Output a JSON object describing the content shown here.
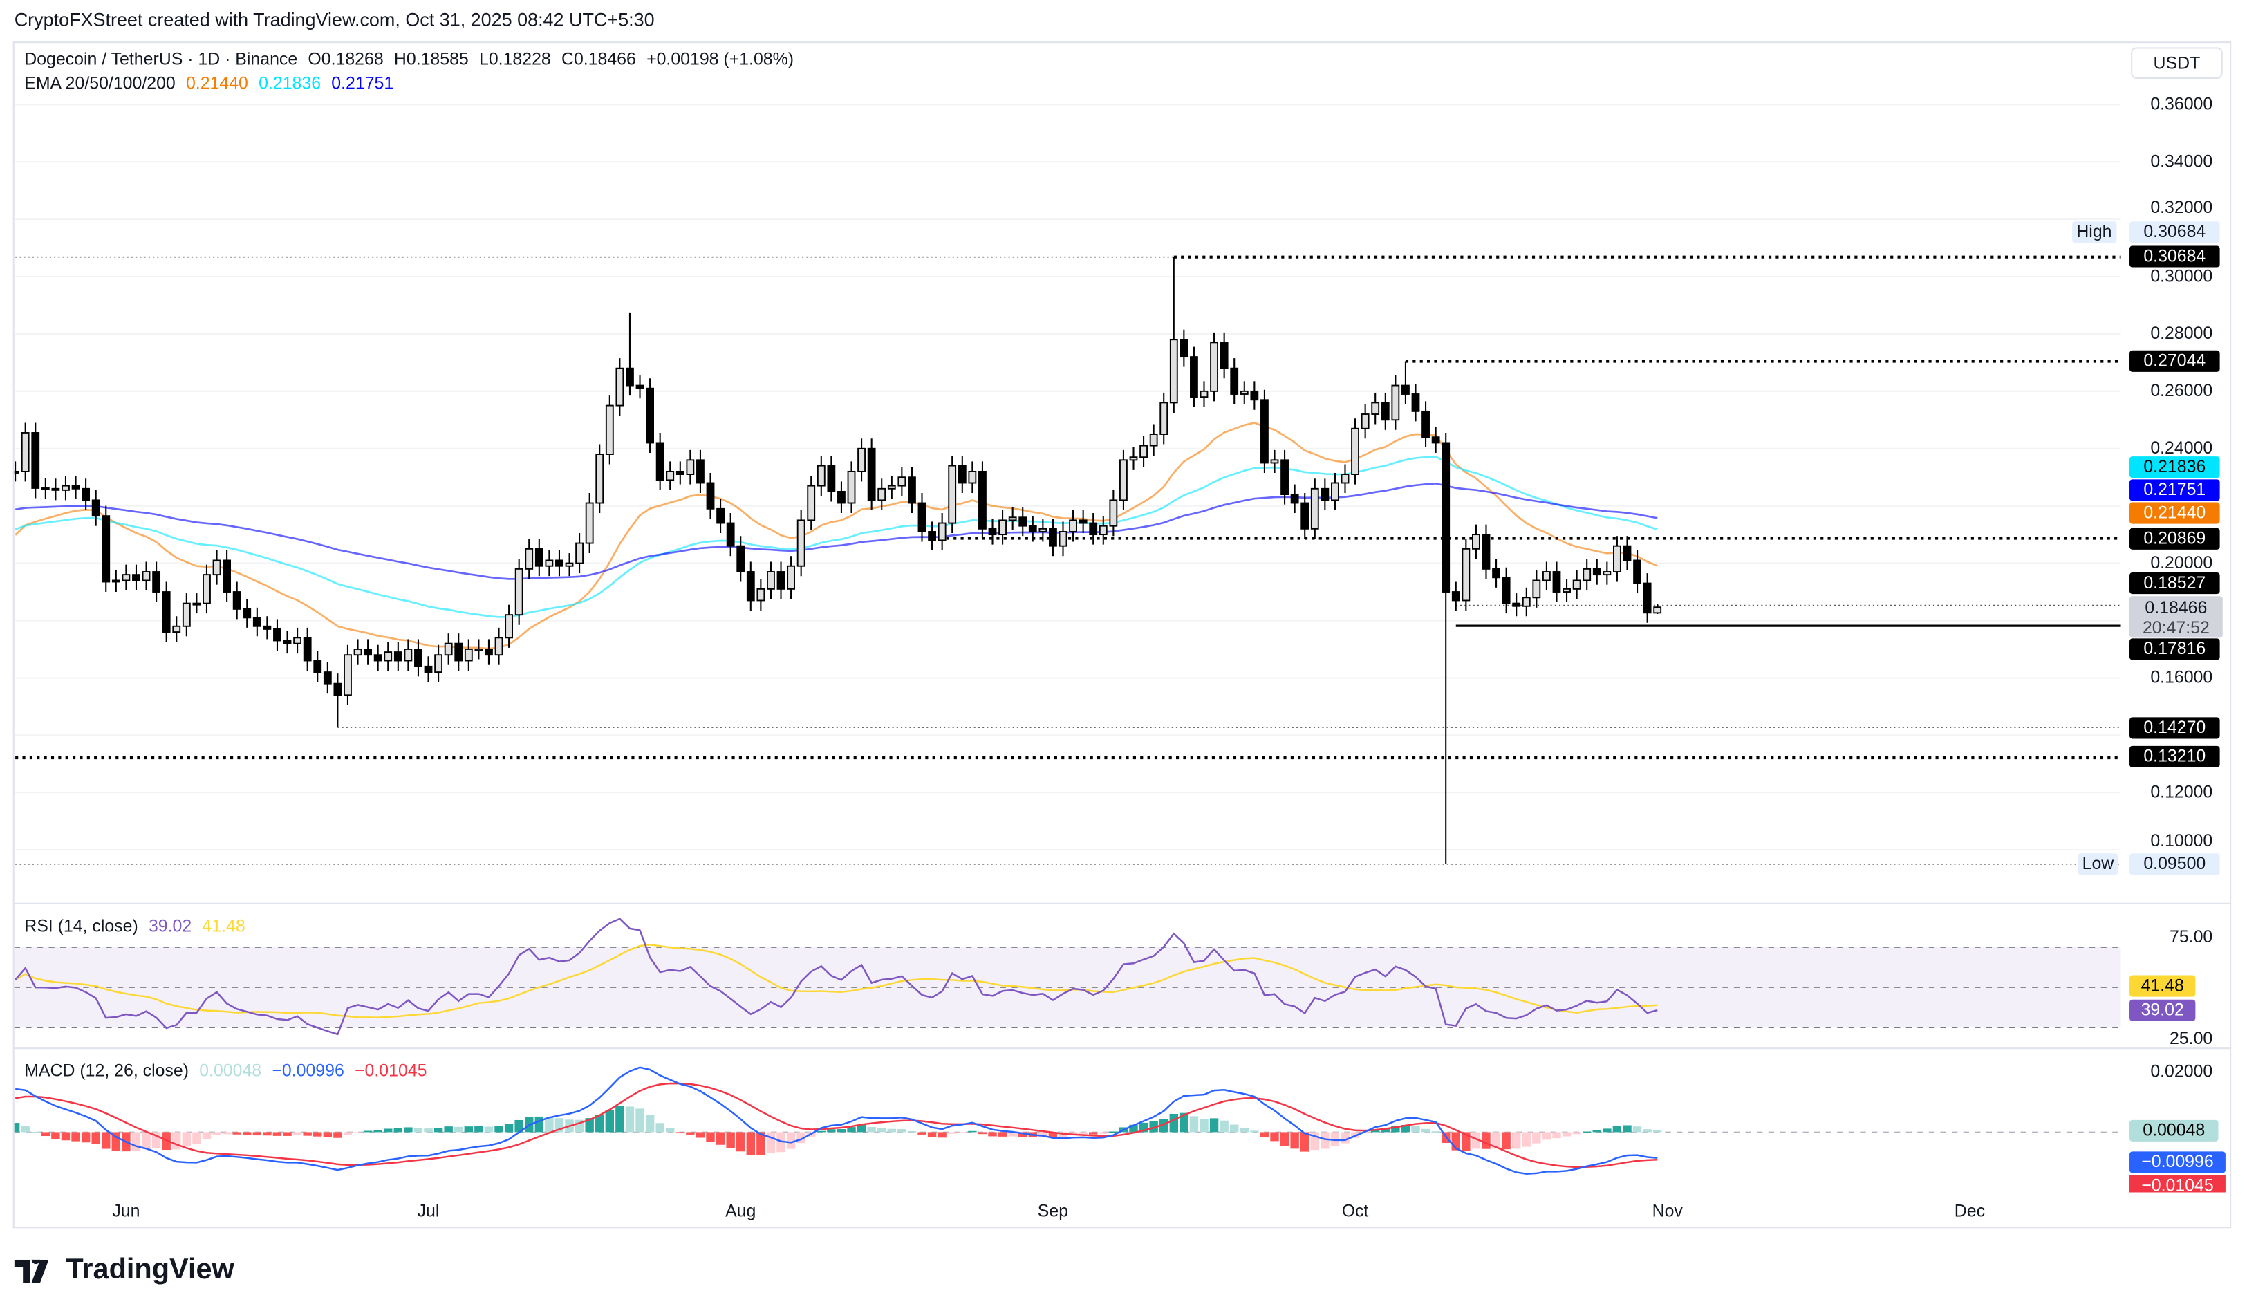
{
  "credit": "CryptoFXStreet created with TradingView.com, Oct 31, 2025 08:42 UTC+5:30",
  "legend": {
    "symbol": "Dogecoin / TetherUS · 1D · Binance",
    "open": "O0.18268",
    "high": "H0.18585",
    "low": "L0.18228",
    "close": "C0.18466",
    "change": "+0.00198 (+1.08%)",
    "ema_label": "EMA 20/50/100/200",
    "ema20": "0.21440",
    "ema50": "0.21836",
    "ema100": "0.21751"
  },
  "currency_button": "USDT",
  "price_axis": [
    "0.36000",
    "0.34000",
    "0.32000",
    "0.30000",
    "0.28000",
    "0.26000",
    "0.24000",
    "0.20000",
    "0.16000",
    "0.12000",
    "0.10000"
  ],
  "price_tags": {
    "high_label": "High",
    "high_value": "0.30684",
    "low_label": "Low",
    "low_value": "0.09500",
    "l30684": "0.30684",
    "l27044": "0.27044",
    "ema50": "0.21836",
    "ema100": "0.21751",
    "ema20": "0.21440",
    "l20869": "0.20869",
    "l18527": "0.18527",
    "last": "0.18466",
    "countdown": "20:47:52",
    "l17816": "0.17816",
    "l14270": "0.14270",
    "l13210": "0.13210"
  },
  "rsi": {
    "label": "RSI (14, close)",
    "value": "39.02",
    "ma": "41.48",
    "axis_top": "75.00",
    "axis_bottom": "25.00"
  },
  "macd": {
    "label": "MACD (12, 26, close)",
    "hist": "0.00048",
    "macd": "−0.00996",
    "signal": "−0.01045",
    "axis_top": "0.02000"
  },
  "time_axis": [
    {
      "label": "Jun",
      "date": "2025-06-01"
    },
    {
      "label": "Jul",
      "date": "2025-07-01"
    },
    {
      "label": "Aug",
      "date": "2025-08-01"
    },
    {
      "label": "Sep",
      "date": "2025-09-01"
    },
    {
      "label": "Oct",
      "date": "2025-10-01"
    },
    {
      "label": "Nov",
      "date": "2025-11-01"
    },
    {
      "label": "Dec",
      "date": "2025-12-01"
    }
  ],
  "logo": "TradingView",
  "colors": {
    "ema20": "#f57c00",
    "ema50": "#00e5ff",
    "ema100": "#0000ff",
    "rsi": "#7e57c2",
    "rsi_ma": "#fdd835",
    "macd": "#2962ff",
    "signal": "#f23645",
    "hist_up": "#26a69a",
    "hist_up_fade": "#b2dfdb",
    "hist_down": "#ff5252",
    "hist_down_fade": "#ffcdd2"
  },
  "chart_data": {
    "type": "candlestick",
    "title": "Dogecoin / TetherUS · 1D · Binance",
    "ylim": [
      0.09,
      0.37
    ],
    "last_open": 0.18268,
    "wick_extremes": [
      {
        "date": "2025-09-13",
        "high": 0.30684
      },
      {
        "date": "2025-10-10",
        "low": 0.095
      },
      {
        "date": "2025-06-22",
        "low": 0.1427
      },
      {
        "date": "2025-07-21",
        "high": 0.2875
      },
      {
        "date": "2025-10-06",
        "high": 0.27044
      },
      {
        "date": "2025-10-31",
        "high": 0.18585,
        "low": 0.18228
      }
    ],
    "levels": [
      {
        "price": 0.30684,
        "from": "2025-05-21",
        "to": "2025-09-13",
        "style": "thin"
      },
      {
        "price": 0.30684,
        "from": "2025-09-13",
        "style": "heavy"
      },
      {
        "price": 0.27044,
        "from": "2025-10-06",
        "style": "heavy"
      },
      {
        "price": 0.20869,
        "from": "2025-08-20",
        "style": "heavy"
      },
      {
        "price": 0.18527,
        "from": "2025-10-11",
        "style": "thin"
      },
      {
        "price": 0.17816,
        "from": "2025-10-11",
        "style": "solid"
      },
      {
        "price": 0.1427,
        "from": "2025-06-22",
        "style": "thin"
      },
      {
        "price": 0.1321,
        "from": "2025-05-21",
        "style": "heavy"
      },
      {
        "price": 0.095,
        "from": "2025-05-21",
        "style": "thin"
      }
    ],
    "candles": [
      [
        "2025-05-21",
        0.232
      ],
      [
        "2025-05-22",
        0.2455
      ],
      [
        "2025-05-23",
        0.2262
      ],
      [
        "2025-05-24",
        0.226
      ],
      [
        "2025-05-25",
        0.2255
      ],
      [
        "2025-05-26",
        0.227
      ],
      [
        "2025-05-27",
        0.226
      ],
      [
        "2025-05-28",
        0.222
      ],
      [
        "2025-05-29",
        0.2165
      ],
      [
        "2025-05-30",
        0.1935
      ],
      [
        "2025-05-31",
        0.194
      ],
      [
        "2025-06-01",
        0.196
      ],
      [
        "2025-06-02",
        0.194
      ],
      [
        "2025-06-03",
        0.197
      ],
      [
        "2025-06-04",
        0.19
      ],
      [
        "2025-06-05",
        0.176
      ],
      [
        "2025-06-06",
        0.178
      ],
      [
        "2025-06-07",
        0.186
      ],
      [
        "2025-06-08",
        0.186
      ],
      [
        "2025-06-09",
        0.196
      ],
      [
        "2025-06-10",
        0.201
      ],
      [
        "2025-06-11",
        0.19
      ],
      [
        "2025-06-12",
        0.184
      ],
      [
        "2025-06-13",
        0.181
      ],
      [
        "2025-06-14",
        0.178
      ],
      [
        "2025-06-15",
        0.177
      ],
      [
        "2025-06-16",
        0.173
      ],
      [
        "2025-06-17",
        0.172
      ],
      [
        "2025-06-18",
        0.174
      ],
      [
        "2025-06-19",
        0.166
      ],
      [
        "2025-06-20",
        0.162
      ],
      [
        "2025-06-21",
        0.158
      ],
      [
        "2025-06-22",
        0.154
      ],
      [
        "2025-06-23",
        0.168
      ],
      [
        "2025-06-24",
        0.17
      ],
      [
        "2025-06-25",
        0.168
      ],
      [
        "2025-06-26",
        0.166
      ],
      [
        "2025-06-27",
        0.169
      ],
      [
        "2025-06-28",
        0.166
      ],
      [
        "2025-06-29",
        0.17
      ],
      [
        "2025-06-30",
        0.164
      ],
      [
        "2025-07-01",
        0.162
      ],
      [
        "2025-07-02",
        0.168
      ],
      [
        "2025-07-03",
        0.172
      ],
      [
        "2025-07-04",
        0.166
      ],
      [
        "2025-07-05",
        0.17
      ],
      [
        "2025-07-06",
        0.17
      ],
      [
        "2025-07-07",
        0.168
      ],
      [
        "2025-07-08",
        0.174
      ],
      [
        "2025-07-09",
        0.182
      ],
      [
        "2025-07-10",
        0.198
      ],
      [
        "2025-07-11",
        0.205
      ],
      [
        "2025-07-12",
        0.199
      ],
      [
        "2025-07-13",
        0.201
      ],
      [
        "2025-07-14",
        0.199
      ],
      [
        "2025-07-15",
        0.2
      ],
      [
        "2025-07-16",
        0.207
      ],
      [
        "2025-07-17",
        0.221
      ],
      [
        "2025-07-18",
        0.238
      ],
      [
        "2025-07-19",
        0.255
      ],
      [
        "2025-07-20",
        0.268
      ],
      [
        "2025-07-21",
        0.262
      ],
      [
        "2025-07-22",
        0.261
      ],
      [
        "2025-07-23",
        0.242
      ],
      [
        "2025-07-24",
        0.229
      ],
      [
        "2025-07-25",
        0.232
      ],
      [
        "2025-07-26",
        0.231
      ],
      [
        "2025-07-27",
        0.236
      ],
      [
        "2025-07-28",
        0.228
      ],
      [
        "2025-07-29",
        0.219
      ],
      [
        "2025-07-30",
        0.214
      ],
      [
        "2025-07-31",
        0.206
      ],
      [
        "2025-08-01",
        0.197
      ],
      [
        "2025-08-02",
        0.187
      ],
      [
        "2025-08-03",
        0.191
      ],
      [
        "2025-08-04",
        0.197
      ],
      [
        "2025-08-05",
        0.191
      ],
      [
        "2025-08-06",
        0.199
      ],
      [
        "2025-08-07",
        0.215
      ],
      [
        "2025-08-08",
        0.227
      ],
      [
        "2025-08-09",
        0.234
      ],
      [
        "2025-08-10",
        0.225
      ],
      [
        "2025-08-11",
        0.221
      ],
      [
        "2025-08-12",
        0.232
      ],
      [
        "2025-08-13",
        0.24
      ],
      [
        "2025-08-14",
        0.222
      ],
      [
        "2025-08-15",
        0.226
      ],
      [
        "2025-08-16",
        0.227
      ],
      [
        "2025-08-17",
        0.23
      ],
      [
        "2025-08-18",
        0.221
      ],
      [
        "2025-08-19",
        0.211
      ],
      [
        "2025-08-20",
        0.208
      ],
      [
        "2025-08-21",
        0.214
      ],
      [
        "2025-08-22",
        0.234
      ],
      [
        "2025-08-23",
        0.228
      ],
      [
        "2025-08-24",
        0.232
      ],
      [
        "2025-08-25",
        0.212
      ],
      [
        "2025-08-26",
        0.21
      ],
      [
        "2025-08-27",
        0.215
      ],
      [
        "2025-08-28",
        0.216
      ],
      [
        "2025-08-29",
        0.213
      ],
      [
        "2025-08-30",
        0.211
      ],
      [
        "2025-08-31",
        0.212
      ],
      [
        "2025-09-01",
        0.206
      ],
      [
        "2025-09-02",
        0.211
      ],
      [
        "2025-09-03",
        0.215
      ],
      [
        "2025-09-04",
        0.214
      ],
      [
        "2025-09-05",
        0.21
      ],
      [
        "2025-09-06",
        0.213
      ],
      [
        "2025-09-07",
        0.222
      ],
      [
        "2025-09-08",
        0.236
      ],
      [
        "2025-09-09",
        0.237
      ],
      [
        "2025-09-10",
        0.241
      ],
      [
        "2025-09-11",
        0.245
      ],
      [
        "2025-09-12",
        0.256
      ],
      [
        "2025-09-13",
        0.278
      ],
      [
        "2025-09-14",
        0.272
      ],
      [
        "2025-09-15",
        0.258
      ],
      [
        "2025-09-16",
        0.26
      ],
      [
        "2025-09-17",
        0.277
      ],
      [
        "2025-09-18",
        0.268
      ],
      [
        "2025-09-19",
        0.259
      ],
      [
        "2025-09-20",
        0.26
      ],
      [
        "2025-09-21",
        0.257
      ],
      [
        "2025-09-22",
        0.235
      ],
      [
        "2025-09-23",
        0.236
      ],
      [
        "2025-09-24",
        0.224
      ],
      [
        "2025-09-25",
        0.221
      ],
      [
        "2025-09-26",
        0.212
      ],
      [
        "2025-09-27",
        0.226
      ],
      [
        "2025-09-28",
        0.222
      ],
      [
        "2025-09-29",
        0.228
      ],
      [
        "2025-09-30",
        0.231
      ],
      [
        "2025-10-01",
        0.247
      ],
      [
        "2025-10-02",
        0.252
      ],
      [
        "2025-10-03",
        0.256
      ],
      [
        "2025-10-04",
        0.25
      ],
      [
        "2025-10-05",
        0.262
      ],
      [
        "2025-10-06",
        0.259
      ],
      [
        "2025-10-07",
        0.253
      ],
      [
        "2025-10-08",
        0.244
      ],
      [
        "2025-10-09",
        0.242
      ],
      [
        "2025-10-10",
        0.19
      ],
      [
        "2025-10-11",
        0.187
      ],
      [
        "2025-10-12",
        0.205
      ],
      [
        "2025-10-13",
        0.21
      ],
      [
        "2025-10-14",
        0.198
      ],
      [
        "2025-10-15",
        0.195
      ],
      [
        "2025-10-16",
        0.186
      ],
      [
        "2025-10-17",
        0.185
      ],
      [
        "2025-10-18",
        0.188
      ],
      [
        "2025-10-19",
        0.194
      ],
      [
        "2025-10-20",
        0.197
      ],
      [
        "2025-10-21",
        0.19
      ],
      [
        "2025-10-22",
        0.191
      ],
      [
        "2025-10-23",
        0.194
      ],
      [
        "2025-10-24",
        0.198
      ],
      [
        "2025-10-25",
        0.196
      ],
      [
        "2025-10-26",
        0.197
      ],
      [
        "2025-10-27",
        0.206
      ],
      [
        "2025-10-28",
        0.201
      ],
      [
        "2025-10-29",
        0.193
      ],
      [
        "2025-10-30",
        0.1827
      ],
      [
        "2025-10-31",
        0.18466
      ]
    ]
  }
}
